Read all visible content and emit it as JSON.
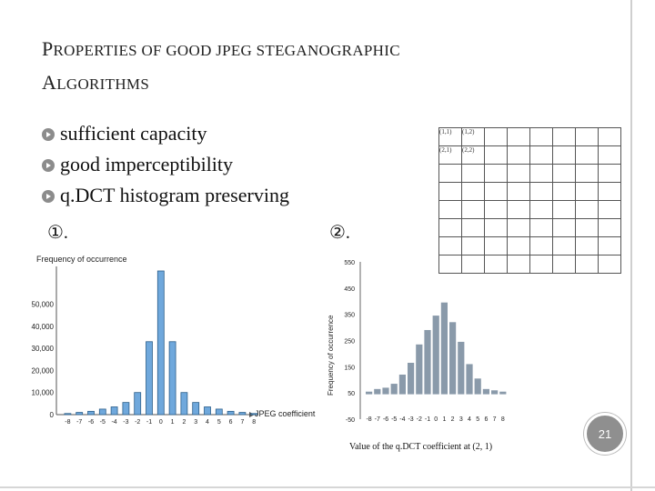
{
  "slide": {
    "title_line1_cap": "P",
    "title_line1_rest": "ROPERTIES OF GOOD JPEG STEGANOGRAPHIC",
    "title_line2_cap": "A",
    "title_line2_rest": "LGORITHMS",
    "bullets": [
      "sufficient capacity",
      "good imperceptibility",
      "q.DCT histogram preserving"
    ],
    "label1": "①.",
    "label2": "②.",
    "page_number": "21",
    "caption": "Value of the q.DCT coefficient at (2, 1)"
  },
  "grid": {
    "cells": [
      [
        "(1,1)",
        "(1,2)"
      ],
      [
        "(2,1)",
        "(2,2)"
      ]
    ]
  },
  "chart_data": [
    {
      "type": "bar",
      "ylabel": "Frequency of occurrence",
      "xlabel": "JPEG coefficient",
      "categories": [
        "-8",
        "-7",
        "-6",
        "-5",
        "-4",
        "-3",
        "-2",
        "-1",
        "0",
        "1",
        "2",
        "3",
        "4",
        "5",
        "6",
        "7",
        "8"
      ],
      "values": [
        500,
        1000,
        1500,
        2500,
        3500,
        5500,
        10000,
        33000,
        65000,
        33000,
        10000,
        5500,
        3500,
        2500,
        1500,
        1000,
        500
      ],
      "ytick_labels": [
        "0",
        "10,000",
        "20,000",
        "30,000",
        "40,000",
        "50,000"
      ],
      "ylim": [
        0,
        65000
      ],
      "color": "#6fa8dc"
    },
    {
      "type": "bar",
      "ylabel": "Frequency of occurrence",
      "xlabel": "Value of the q.DCT coefficient at (2, 1)",
      "categories": [
        "-8",
        "-7",
        "-6",
        "-5",
        "-4",
        "-3",
        "-2",
        "-1",
        "0",
        "1",
        "2",
        "3",
        "4",
        "5",
        "6",
        "7",
        "8"
      ],
      "values": [
        55,
        65,
        70,
        85,
        120,
        165,
        235,
        290,
        345,
        395,
        320,
        245,
        160,
        105,
        65,
        60,
        55
      ],
      "ytick_labels": [
        "-50",
        "50",
        "150",
        "250",
        "350",
        "450",
        "550"
      ],
      "ylim": [
        -50,
        550
      ],
      "color": "#8a9aaa"
    }
  ]
}
